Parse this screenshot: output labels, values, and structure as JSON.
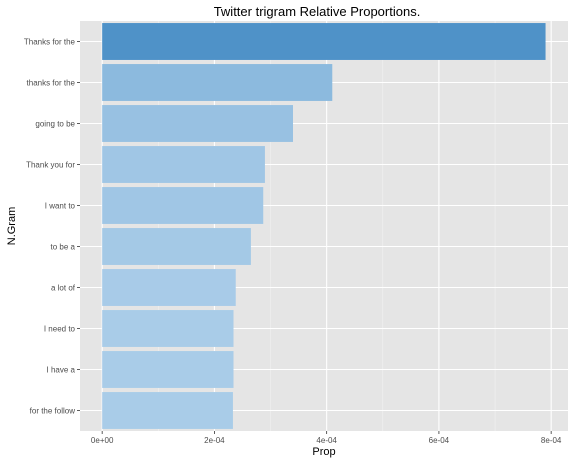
{
  "chart_data": {
    "type": "bar",
    "orientation": "horizontal",
    "title": "Twitter trigram Relative Proportions.",
    "xlabel": "Prop",
    "ylabel": "N.Gram",
    "categories": [
      "Thanks for the",
      "thanks for the",
      "going to be",
      "Thank you for",
      "I want to",
      "to be a",
      "a lot of",
      "I need to",
      "I have a",
      "for the follow"
    ],
    "values": [
      0.00079,
      0.00041,
      0.00034,
      0.00029,
      0.000287,
      0.000265,
      0.000238,
      0.000234,
      0.000234,
      0.000233
    ],
    "xlim": [
      -3.95e-05,
      0.00083
    ],
    "x_ticks": [
      0,
      0.0002,
      0.0004,
      0.0006,
      0.0008
    ],
    "x_tick_labels": [
      "0e+00",
      "2e-04",
      "4e-04",
      "6e-04",
      "8e-04"
    ],
    "grid": true,
    "legend": "none",
    "colors": {
      "panel_background": "#e5e5e5",
      "grid_major": "#ffffff",
      "bar_low": "#a9cce8",
      "bar_high": "#4f92c8",
      "tick": "#333333"
    }
  }
}
